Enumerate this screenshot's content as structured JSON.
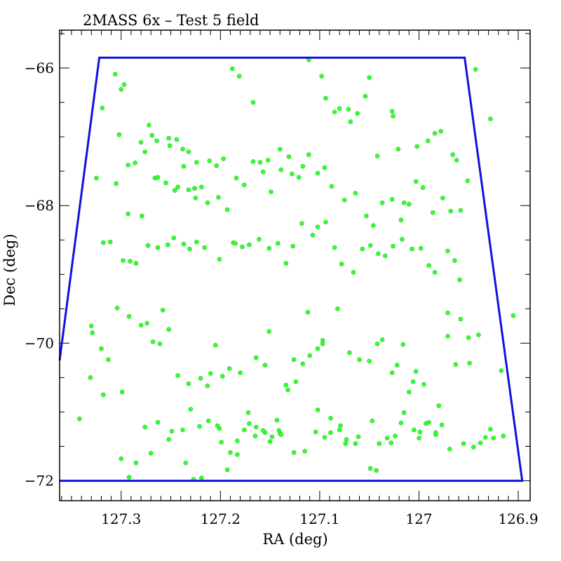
{
  "chart_data": {
    "type": "scatter",
    "title": "2MASS 6x – Test 5 field",
    "xlabel": "RA (deg)",
    "ylabel": "Dec (deg)",
    "xlim": [
      127.362,
      126.888
    ],
    "ylim": [
      -72.29,
      -65.45
    ],
    "x_ticks": [
      127.3,
      127.2,
      127.1,
      127,
      126.9
    ],
    "x_tick_labels": [
      "127.3",
      "127.2",
      "127.1",
      "127",
      "126.9"
    ],
    "y_ticks": [
      -66,
      -68,
      -70,
      -72
    ],
    "y_tick_labels": [
      "−66",
      "−68",
      "−70",
      "−72"
    ],
    "point_color": "#33ff33",
    "boundary_color": "#1111dd",
    "grid": false,
    "boundary": {
      "ra": [
        127.362,
        127.322,
        126.954,
        126.896,
        127.362
      ],
      "dec": [
        -70.25,
        -65.85,
        -65.85,
        -72.0,
        -72.0
      ]
    },
    "points": {
      "ra": [
        127.319,
        127.306,
        127.3,
        127.297,
        127.293,
        127.286,
        127.28,
        127.276,
        127.272,
        127.269,
        127.264,
        127.252,
        127.251,
        127.244,
        127.238,
        127.232,
        127.226,
        127.225,
        127.219,
        127.211,
        127.204,
        127.197,
        127.188,
        127.181,
        127.167,
        127.157,
        127.152,
        127.14,
        127.131,
        127.117,
        127.111,
        127.098,
        127.094,
        127.085,
        127.08,
        127.071,
        127.069,
        127.062,
        127.054,
        127.05,
        127.042,
        127.027,
        127.026,
        127.021,
        127.015,
        127.002,
        126.991,
        126.984,
        126.978,
        126.966,
        126.962,
        126.943,
        126.928,
        127.325,
        127.302,
        127.305,
        127.293,
        127.279,
        127.266,
        127.263,
        127.255,
        127.243,
        127.246,
        127.237,
        127.232,
        127.226,
        127.224,
        127.213,
        127.202,
        127.193,
        127.184,
        127.176,
        127.167,
        127.16,
        127.149,
        127.139,
        127.128,
        127.121,
        127.111,
        127.102,
        127.095,
        127.088,
        127.075,
        127.064,
        127.053,
        127.046,
        127.037,
        127.027,
        127.018,
        127.01,
        127.003,
        126.996,
        126.986,
        126.976,
        126.968,
        126.958,
        126.951,
        127.318,
        127.311,
        127.298,
        127.291,
        127.285,
        127.273,
        127.263,
        127.253,
        127.247,
        127.237,
        127.231,
        127.224,
        127.216,
        127.201,
        127.187,
        127.185,
        127.178,
        127.171,
        127.161,
        127.151,
        127.142,
        127.134,
        127.127,
        127.118,
        127.107,
        127.102,
        127.094,
        127.085,
        127.078,
        127.066,
        127.057,
        127.049,
        127.041,
        127.034,
        127.026,
        127.017,
        127.007,
        126.998,
        126.99,
        126.984,
        126.971,
        126.964,
        126.959,
        127.342,
        127.329,
        127.313,
        127.299,
        127.285,
        127.274,
        127.261,
        127.258,
        127.249,
        127.238,
        127.23,
        127.221,
        127.21,
        127.201,
        127.193,
        127.183,
        127.172,
        127.164,
        127.155,
        127.151,
        127.141,
        127.134,
        127.126,
        127.112,
        127.102,
        127.097,
        127.082,
        127.073,
        127.064,
        127.049,
        127.043,
        127.032,
        127.024,
        127.015,
        127.006,
        127.0,
        126.995,
        126.98,
        126.971,
        126.963,
        126.949,
        126.94,
        126.933,
        126.925,
        126.917,
        126.905,
        127.331,
        127.318,
        127.3,
        127.292,
        127.276,
        127.27,
        127.263,
        127.252,
        127.235,
        127.227,
        127.219,
        127.212,
        127.205,
        127.198,
        127.191,
        127.18,
        127.171,
        127.164,
        127.155,
        127.148,
        127.14,
        127.132,
        127.124,
        127.117,
        127.11,
        127.102,
        127.097,
        127.089,
        127.08,
        127.07,
        127.06,
        127.05,
        127.042,
        127.037,
        127.027,
        127.022,
        127.016,
        127.01,
        127.003,
        126.993,
        126.983,
        126.971,
        126.958,
        126.95,
        127.33,
        127.32,
        127.304,
        127.292,
        127.28,
        127.268,
        127.252,
        127.243,
        127.232,
        127.22,
        127.213,
        127.203,
        127.199,
        127.19,
        127.183,
        127.176,
        127.165,
        127.157,
        127.15,
        127.143,
        127.139,
        127.126,
        127.115,
        127.104,
        127.095,
        127.089,
        127.079,
        127.074,
        127.061,
        127.047,
        127.04,
        127.028,
        127.018,
        127.005,
        126.999,
        126.99,
        126.983,
        126.977,
        126.969,
        126.955,
        126.945,
        126.938,
        126.928,
        126.915
      ],
      "dec": [
        -66.58,
        -66.09,
        -66.31,
        -66.24,
        -67.41,
        -67.38,
        -67.08,
        -67.22,
        -66.83,
        -66.98,
        -67.06,
        -67.02,
        -67.13,
        -67.04,
        -67.18,
        -67.22,
        -67.75,
        -67.89,
        -67.73,
        -67.35,
        -67.42,
        -67.32,
        -66.01,
        -66.12,
        -66.5,
        -67.51,
        -67.34,
        -67.18,
        -67.29,
        -67.43,
        -65.88,
        -66.12,
        -66.44,
        -66.64,
        -66.59,
        -66.6,
        -66.78,
        -66.66,
        -66.41,
        -66.14,
        -67.28,
        -66.63,
        -66.7,
        -67.18,
        -67.96,
        -67.14,
        -67.06,
        -66.95,
        -66.92,
        -67.26,
        -67.34,
        -66.02,
        -66.74,
        -67.6,
        -66.97,
        -67.68,
        -68.12,
        -68.15,
        -67.6,
        -67.59,
        -67.67,
        -67.73,
        -67.78,
        -67.43,
        -67.77,
        -67.75,
        -67.37,
        -67.96,
        -67.88,
        -68.06,
        -67.6,
        -67.7,
        -67.36,
        -67.37,
        -67.8,
        -67.48,
        -67.54,
        -67.59,
        -67.26,
        -67.53,
        -67.45,
        -67.72,
        -67.92,
        -67.82,
        -68.15,
        -68.29,
        -67.96,
        -67.91,
        -68.21,
        -67.98,
        -67.65,
        -67.74,
        -68.1,
        -67.89,
        -68.08,
        -68.07,
        -67.64,
        -68.54,
        -68.53,
        -68.8,
        -68.81,
        -68.84,
        -68.58,
        -68.61,
        -68.57,
        -68.47,
        -68.56,
        -68.63,
        -68.53,
        -68.61,
        -68.78,
        -68.54,
        -68.55,
        -68.6,
        -68.57,
        -68.49,
        -68.62,
        -68.55,
        -68.84,
        -68.59,
        -68.26,
        -68.43,
        -68.31,
        -68.24,
        -68.61,
        -68.85,
        -68.97,
        -68.63,
        -68.58,
        -68.7,
        -68.73,
        -68.59,
        -68.49,
        -68.63,
        -68.62,
        -68.87,
        -68.97,
        -68.66,
        -68.8,
        -69.08,
        -71.1,
        -69.85,
        -70.24,
        -70.71,
        -71.74,
        -69.71,
        -70.01,
        -69.52,
        -71.28,
        -71.26,
        -70.96,
        -71.21,
        -70.44,
        -71.24,
        -71.84,
        -71.62,
        -71.01,
        -70.21,
        -70.32,
        -69.83,
        -71.27,
        -70.61,
        -70.24,
        -69.55,
        -70.97,
        -70.01,
        -69.5,
        -71.4,
        -71.46,
        -71.82,
        -71.85,
        -71.38,
        -71.35,
        -71.01,
        -70.56,
        -71.38,
        -70.6,
        -70.91,
        -69.9,
        -70.31,
        -70.29,
        -69.88,
        -71.37,
        -71.38,
        -70.4,
        -69.6,
        -70.5,
        -70.75,
        -71.68,
        -71.95,
        -71.22,
        -71.6,
        -71.15,
        -71.4,
        -71.74,
        -71.98,
        -71.96,
        -71.13,
        -70.03,
        -70.48,
        -70.37,
        -70.43,
        -71.17,
        -71.22,
        -71.3,
        -71.36,
        -71.31,
        -70.68,
        -70.56,
        -70.3,
        -70.18,
        -70.08,
        -69.96,
        -71.09,
        -71.26,
        -70.14,
        -70.24,
        -70.26,
        -70.01,
        -69.95,
        -70.43,
        -70.32,
        -70.02,
        -70.71,
        -70.41,
        -71.17,
        -71.33,
        -69.56,
        -69.65,
        -69.92,
        -69.75,
        -70.08,
        -69.49,
        -69.61,
        -69.74,
        -69.98,
        -69.8,
        -70.47,
        -70.59,
        -70.51,
        -70.62,
        -71.2,
        -71.44,
        -71.59,
        -71.42,
        -71.26,
        -71.35,
        -71.27,
        -71.43,
        -71.12,
        -71.33,
        -71.59,
        -71.57,
        -71.29,
        -71.37,
        -71.3,
        -71.2,
        -71.46,
        -71.36,
        -71.13,
        -71.46,
        -71.45,
        -71.16,
        -71.26,
        -71.29,
        -71.15,
        -71.3,
        -71.19,
        -71.54,
        -71.46,
        -71.51,
        -71.45,
        -71.25,
        -71.35,
        -71.4,
        -71.4,
        -71.5,
        -71.27,
        -71.29,
        -71.25,
        -71.39,
        -71.48,
        -71.4
      ]
    }
  }
}
